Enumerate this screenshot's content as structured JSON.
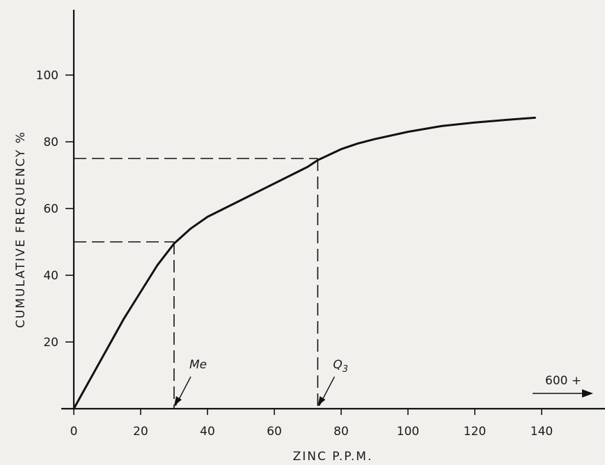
{
  "chart_data": {
    "type": "line",
    "title": "",
    "xlabel": "ZINC P.P.M.",
    "ylabel": "CUMULATIVE FREQUENCY %",
    "xlim": [
      0,
      150
    ],
    "ylim": [
      0,
      100
    ],
    "x_ticks": [
      0,
      20,
      40,
      60,
      80,
      100,
      120,
      140
    ],
    "y_ticks": [
      20,
      40,
      60,
      80,
      100
    ],
    "grid": false,
    "series": [
      {
        "x": [
          0,
          5,
          10,
          15,
          20,
          25,
          30,
          35,
          40,
          45,
          50,
          55,
          60,
          65,
          70,
          73,
          80,
          85,
          90,
          100,
          110,
          120,
          130,
          138
        ],
        "y": [
          0,
          9,
          18,
          27,
          35,
          43,
          49.5,
          54,
          57.5,
          60,
          62.5,
          65,
          67.5,
          70,
          72.5,
          74.5,
          77.8,
          79.5,
          80.8,
          83,
          84.7,
          85.8,
          86.6,
          87.2
        ]
      }
    ],
    "reference_lines": [
      {
        "label": "Me",
        "x": 30,
        "y": 50
      },
      {
        "label": "Q3",
        "x": 73,
        "y": 75
      }
    ],
    "overflow_note": "600 +",
    "colors": {
      "line": "#111111",
      "background": "#f1f0ed"
    }
  }
}
